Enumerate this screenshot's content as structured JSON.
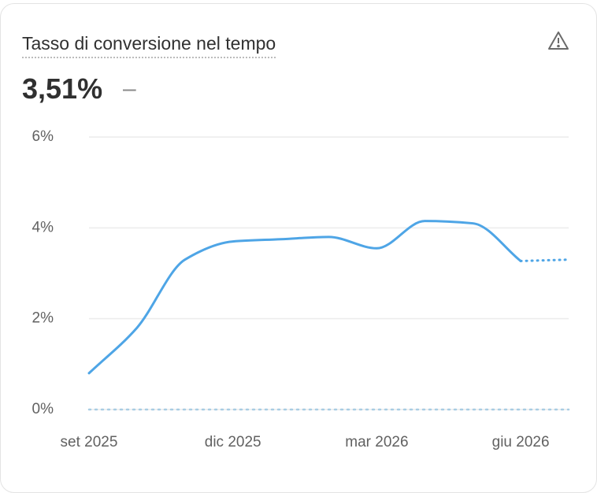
{
  "header": {
    "title": "Tasso di conversione nel tempo",
    "value": "3,51%",
    "change": "–"
  },
  "chart_data": {
    "type": "line",
    "categories": [
      "set 2025",
      null,
      null,
      "dic 2025",
      null,
      null,
      "mar 2026",
      null,
      null,
      "giu 2026",
      null
    ],
    "series": [
      {
        "color": "#4ea5e6",
        "values": [
          0.8,
          1.8,
          3.3,
          3.7,
          3.75,
          3.8,
          3.55,
          4.15,
          4.1,
          3.27,
          3.3
        ],
        "incomplete_last": true
      },
      {
        "color": "#a8cde3",
        "values": [
          0,
          0,
          0,
          0,
          0,
          0,
          0,
          0,
          0,
          0,
          0
        ],
        "dashed": true
      }
    ],
    "ylim": [
      0,
      6
    ],
    "yticks": [
      {
        "value": 0,
        "label": "0%"
      },
      {
        "value": 2,
        "label": "2%"
      },
      {
        "value": 4,
        "label": "4%"
      },
      {
        "value": 6,
        "label": "6%"
      }
    ],
    "grid": true
  }
}
